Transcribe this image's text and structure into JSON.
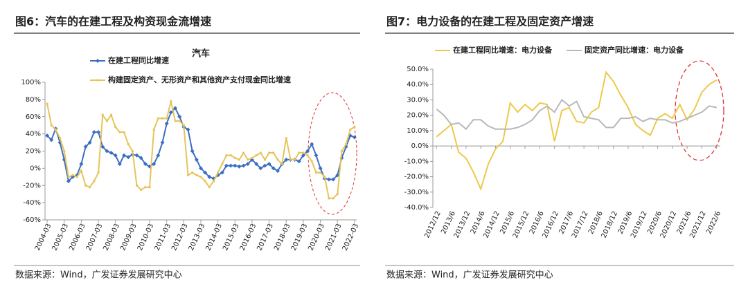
{
  "chart_data": [
    {
      "type": "line",
      "title": "图6：汽车的在建工程及构资现金流增速",
      "subtitle": "汽车",
      "source": "数据来源：Wind，广发证券发展研究中心",
      "categories": [
        "2004-03",
        null,
        null,
        null,
        "2005-03",
        null,
        null,
        null,
        "2006-03",
        null,
        null,
        null,
        "2007-03",
        null,
        null,
        null,
        "2008-03",
        null,
        null,
        null,
        "2009-03",
        null,
        null,
        null,
        "2010-03",
        null,
        null,
        null,
        "2011-03",
        null,
        null,
        null,
        "2012-03",
        null,
        null,
        null,
        "2013-03",
        null,
        null,
        null,
        "2014-03",
        null,
        null,
        null,
        "2015-03",
        null,
        null,
        null,
        "2016-03",
        null,
        null,
        null,
        "2017-03",
        null,
        null,
        null,
        "2018-03",
        null,
        null,
        null,
        "2019-03",
        null,
        null,
        null,
        "2020-03",
        null,
        null,
        null,
        "2021-03",
        null,
        null,
        null,
        "2022-03"
      ],
      "series": [
        {
          "name": "在建工程同比增速",
          "color": "#3b6fc2",
          "marker": "diamond",
          "values": [
            38,
            33,
            46,
            30,
            10,
            -15,
            -10,
            -8,
            5,
            25,
            30,
            42,
            42,
            25,
            20,
            18,
            15,
            5,
            15,
            13,
            16,
            15,
            12,
            5,
            2,
            5,
            15,
            30,
            52,
            65,
            70,
            60,
            48,
            45,
            20,
            10,
            0,
            -5,
            -10,
            -12,
            -8,
            -5,
            3,
            3,
            3,
            2,
            3,
            5,
            10,
            5,
            0,
            3,
            5,
            0,
            -3,
            5,
            10,
            10,
            10,
            8,
            15,
            20,
            28,
            15,
            0,
            -12,
            -13,
            -13,
            -8,
            12,
            25,
            38,
            36
          ]
        },
        {
          "name": "构建固定资产、无形资产和其他资产支付现金同比增速",
          "color": "#e6c45a",
          "marker": "square",
          "values": [
            75,
            50,
            45,
            35,
            20,
            -10,
            -8,
            -10,
            -3,
            -20,
            -22,
            -15,
            -5,
            62,
            55,
            62,
            48,
            42,
            42,
            28,
            20,
            -20,
            -25,
            -22,
            -22,
            45,
            58,
            58,
            58,
            78,
            55,
            55,
            50,
            -8,
            -5,
            -8,
            -10,
            -15,
            -22,
            -15,
            -5,
            5,
            15,
            15,
            12,
            10,
            18,
            10,
            12,
            15,
            18,
            10,
            18,
            18,
            10,
            5,
            35,
            10,
            10,
            18,
            18,
            15,
            8,
            -5,
            -5,
            -10,
            -35,
            -35,
            -30,
            20,
            28,
            45,
            48
          ]
        }
      ],
      "ylim": [
        -60,
        100
      ],
      "yticks": [
        {
          "value": -60,
          "label": "-60%"
        },
        {
          "value": -40,
          "label": "-40%"
        },
        {
          "value": -20,
          "label": "-20%"
        },
        {
          "value": 0,
          "label": "0%"
        },
        {
          "value": 20,
          "label": "20%"
        },
        {
          "value": 40,
          "label": "40%"
        },
        {
          "value": 60,
          "label": "60%"
        },
        {
          "value": 80,
          "label": "80%"
        },
        {
          "value": 100,
          "label": "100%"
        }
      ],
      "grid": false,
      "legend": "upper left"
    },
    {
      "type": "line",
      "title": "图7：电力设备的在建工程及固定资产增速",
      "source": "数据来源：Wind，广发证券发展研究中心",
      "categories": [
        "2012/12",
        null,
        "2013/6",
        null,
        "2013/12",
        null,
        "2014/6",
        null,
        "2014/12",
        null,
        "2015/6",
        null,
        "2015/12",
        null,
        "2016/6",
        null,
        "2016/12",
        null,
        "2017/6",
        null,
        "2017/12",
        null,
        "2018/6",
        null,
        "2018/12",
        null,
        "2019/6",
        null,
        "2019/12",
        null,
        "2020/6",
        null,
        "2020/12",
        null,
        "2021/6",
        null,
        "2021/12",
        null,
        "2022/6"
      ],
      "series": [
        {
          "name": "在建工程同比增速：电力设备",
          "color": "#ecc94b",
          "values": [
            6,
            10,
            14,
            -4,
            -8,
            -17,
            -28,
            -12,
            -2,
            3,
            28,
            22,
            27,
            23,
            28,
            27,
            3,
            23,
            25,
            16,
            15,
            22,
            25,
            48,
            42,
            33,
            25,
            14,
            10,
            7,
            18,
            21,
            18,
            27,
            17,
            24,
            35,
            40,
            43
          ]
        },
        {
          "name": "固定资产同比增速：电力设备",
          "color": "#b8b8b8",
          "values": [
            24,
            20,
            14,
            15,
            11,
            17,
            17,
            13,
            11,
            11,
            11,
            12,
            14,
            17,
            23,
            26,
            22,
            30,
            26,
            29,
            19,
            18,
            17,
            12,
            12,
            18,
            18,
            19,
            16,
            18,
            17,
            17,
            15,
            16,
            18,
            20,
            22,
            26,
            25
          ]
        }
      ],
      "ylim": [
        -40,
        50
      ],
      "yticks": [
        {
          "value": -40,
          "label": "-40.0%"
        },
        {
          "value": -30,
          "label": "-30.0%"
        },
        {
          "value": -20,
          "label": "-20.0%"
        },
        {
          "value": -10,
          "label": "-10.0%"
        },
        {
          "value": 0,
          "label": "0.0%"
        },
        {
          "value": 10,
          "label": "10.0%"
        },
        {
          "value": 20,
          "label": "20.0%"
        },
        {
          "value": 30,
          "label": "30.0%"
        },
        {
          "value": 40,
          "label": "40.0%"
        },
        {
          "value": 50,
          "label": "50.0%"
        }
      ],
      "grid": false,
      "legend": "upper center"
    }
  ]
}
